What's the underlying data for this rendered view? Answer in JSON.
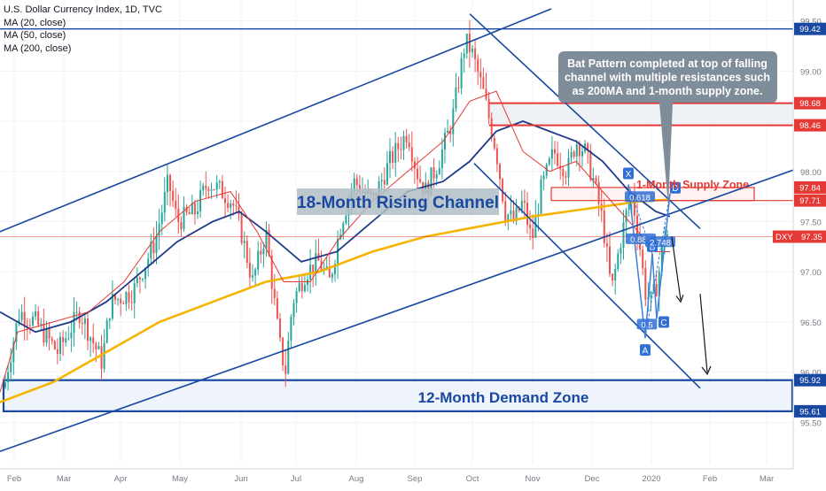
{
  "header": {
    "symbol_line": "U.S. Dollar Currency Index, 1D, TVC",
    "indicators": [
      "MA (20, close)",
      "MA (50, close)",
      "MA (200, close)"
    ]
  },
  "chart_data": {
    "type": "candlestick",
    "ylim": [
      95.08,
      99.62
    ],
    "y_ticks": [
      "99.50",
      "99.00",
      "98.50",
      "98.00",
      "97.50",
      "97.00",
      "96.50",
      "96.00",
      "95.50"
    ],
    "x_ticks": [
      "Feb",
      "Mar",
      "Apr",
      "May",
      "Jun",
      "Jul",
      "Aug",
      "Sep",
      "Oct",
      "Nov",
      "Dec",
      "2020",
      "Feb",
      "Mar"
    ],
    "price_labels": [
      {
        "text": "99.42",
        "value": 99.42,
        "color": "#1848a0"
      },
      {
        "text": "98.68",
        "value": 98.68,
        "color": "#e53935"
      },
      {
        "text": "98.46",
        "value": 98.46,
        "color": "#e53935"
      },
      {
        "text": "97.84",
        "value": 97.84,
        "color": "#e53935"
      },
      {
        "text": "97.71",
        "value": 97.71,
        "color": "#e53935"
      },
      {
        "text": "95.92",
        "value": 95.92,
        "color": "#1848a0"
      },
      {
        "text": "95.61",
        "value": 95.61,
        "color": "#1848a0"
      }
    ],
    "current_price": {
      "symbol": "DXY",
      "value": "97.35",
      "color": "#e53935"
    },
    "price_path": [
      [
        0,
        95.6
      ],
      [
        10,
        96.1
      ],
      [
        22,
        96.6
      ],
      [
        40,
        96.5
      ],
      [
        65,
        96.2
      ],
      [
        90,
        96.6
      ],
      [
        115,
        96.1
      ],
      [
        125,
        96.7
      ],
      [
        150,
        96.8
      ],
      [
        175,
        97.3
      ],
      [
        190,
        97.9
      ],
      [
        200,
        97.5
      ],
      [
        220,
        97.6
      ],
      [
        235,
        97.9
      ],
      [
        250,
        97.8
      ],
      [
        262,
        97.7
      ],
      [
        272,
        97.4
      ],
      [
        285,
        96.9
      ],
      [
        300,
        97.4
      ],
      [
        315,
        96.3
      ],
      [
        322,
        96.0
      ],
      [
        330,
        96.7
      ],
      [
        345,
        97.0
      ],
      [
        360,
        97.1
      ],
      [
        372,
        96.9
      ],
      [
        385,
        97.5
      ],
      [
        400,
        97.9
      ],
      [
        420,
        97.7
      ],
      [
        440,
        98.1
      ],
      [
        460,
        98.4
      ],
      [
        470,
        98.0
      ],
      [
        480,
        97.8
      ],
      [
        495,
        98.1
      ],
      [
        510,
        98.5
      ],
      [
        525,
        99.3
      ],
      [
        532,
        99.2
      ],
      [
        545,
        98.8
      ],
      [
        560,
        98.2
      ],
      [
        570,
        97.6
      ],
      [
        580,
        97.5
      ],
      [
        590,
        97.7
      ],
      [
        600,
        97.3
      ],
      [
        610,
        97.8
      ],
      [
        625,
        98.2
      ],
      [
        640,
        98.0
      ],
      [
        650,
        98.3
      ],
      [
        660,
        98.2
      ],
      [
        670,
        97.9
      ],
      [
        680,
        97.5
      ],
      [
        690,
        96.8
      ],
      [
        700,
        97.3
      ],
      [
        712,
        97.8
      ],
      [
        720,
        97.4
      ],
      [
        728,
        96.8
      ],
      [
        735,
        96.7
      ],
      [
        742,
        96.9
      ],
      [
        750,
        97.4
      ],
      [
        756,
        97.35
      ]
    ],
    "ma20_path": [
      [
        0,
        95.8
      ],
      [
        20,
        96.4
      ],
      [
        60,
        96.5
      ],
      [
        100,
        96.6
      ],
      [
        140,
        96.9
      ],
      [
        180,
        97.4
      ],
      [
        220,
        97.7
      ],
      [
        260,
        97.8
      ],
      [
        290,
        97.4
      ],
      [
        320,
        96.9
      ],
      [
        350,
        96.9
      ],
      [
        380,
        97.3
      ],
      [
        420,
        97.7
      ],
      [
        460,
        98.0
      ],
      [
        500,
        98.3
      ],
      [
        530,
        98.7
      ],
      [
        560,
        98.8
      ],
      [
        590,
        98.2
      ],
      [
        620,
        98.0
      ],
      [
        650,
        98.1
      ],
      [
        680,
        97.8
      ],
      [
        710,
        97.5
      ],
      [
        740,
        97.2
      ],
      [
        756,
        97.2
      ]
    ],
    "ma50_path": [
      [
        0,
        96.6
      ],
      [
        40,
        96.4
      ],
      [
        80,
        96.5
      ],
      [
        120,
        96.7
      ],
      [
        160,
        97.0
      ],
      [
        200,
        97.3
      ],
      [
        240,
        97.5
      ],
      [
        270,
        97.6
      ],
      [
        300,
        97.4
      ],
      [
        340,
        97.1
      ],
      [
        380,
        97.2
      ],
      [
        420,
        97.5
      ],
      [
        460,
        97.8
      ],
      [
        500,
        97.9
      ],
      [
        530,
        98.1
      ],
      [
        560,
        98.4
      ],
      [
        590,
        98.5
      ],
      [
        620,
        98.4
      ],
      [
        650,
        98.3
      ],
      [
        680,
        98.1
      ],
      [
        710,
        97.8
      ],
      [
        740,
        97.6
      ],
      [
        756,
        97.55
      ]
    ],
    "ma200_path": [
      [
        0,
        95.7
      ],
      [
        60,
        95.9
      ],
      [
        120,
        96.2
      ],
      [
        180,
        96.5
      ],
      [
        240,
        96.7
      ],
      [
        300,
        96.9
      ],
      [
        360,
        97.0
      ],
      [
        420,
        97.2
      ],
      [
        480,
        97.35
      ],
      [
        540,
        97.45
      ],
      [
        600,
        97.55
      ],
      [
        640,
        97.6
      ],
      [
        680,
        97.65
      ],
      [
        720,
        97.7
      ],
      [
        756,
        97.72
      ]
    ],
    "annotations": {
      "rising_channel_label": "18-Month Rising Channel",
      "demand_zone_label": "12-Month Demand Zone",
      "supply_zone_label": "1-Month Supply Zone",
      "callout": [
        "Bat Pattern completed at top of falling",
        "channel with multiple resistances such",
        "as 200MA and 1-month supply zone."
      ],
      "pattern_points": [
        "X",
        "A",
        "B",
        "C",
        "D"
      ],
      "ratios": [
        "0.885",
        "2.748",
        "0.5",
        "0.618"
      ]
    },
    "colors": {
      "up": "#26a69a",
      "down": "#ef5350",
      "ma20": "#e53935",
      "ma50": "#1e3a8a",
      "ma200": "#f5b400",
      "blue_line": "#1848a0",
      "red_line": "#e53935",
      "label_box": "#b0bec5",
      "label_text": "#1848a0",
      "callout_bg": "#7f8c9a"
    }
  }
}
